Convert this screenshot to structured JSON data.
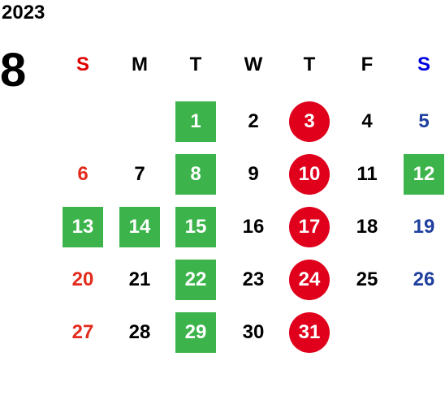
{
  "calendar": {
    "year": "2023",
    "month": "8",
    "weekdays": [
      {
        "label": "S",
        "color": "#e00000"
      },
      {
        "label": "M",
        "color": "#000000"
      },
      {
        "label": "T",
        "color": "#000000"
      },
      {
        "label": "W",
        "color": "#000000"
      },
      {
        "label": "T",
        "color": "#000000"
      },
      {
        "label": "F",
        "color": "#000000"
      },
      {
        "label": "S",
        "color": "#0000e0"
      }
    ],
    "colors": {
      "sunday_text": "#e32b1c",
      "saturday_text": "#1f3f9e",
      "weekday_text": "#000000",
      "green_highlight": "#3cb44b",
      "red_highlight": "#e0001c",
      "highlight_text": "#ffffff"
    },
    "weeks": [
      [
        null,
        null,
        {
          "day": "1",
          "mark": "square"
        },
        {
          "day": "2"
        },
        {
          "day": "3",
          "mark": "circle"
        },
        {
          "day": "4"
        },
        {
          "day": "5"
        }
      ],
      [
        {
          "day": "6"
        },
        {
          "day": "7"
        },
        {
          "day": "8",
          "mark": "square"
        },
        {
          "day": "9"
        },
        {
          "day": "10",
          "mark": "circle"
        },
        {
          "day": "11"
        },
        {
          "day": "12",
          "mark": "square"
        }
      ],
      [
        {
          "day": "13",
          "mark": "square"
        },
        {
          "day": "14",
          "mark": "square"
        },
        {
          "day": "15",
          "mark": "square"
        },
        {
          "day": "16"
        },
        {
          "day": "17",
          "mark": "circle"
        },
        {
          "day": "18"
        },
        {
          "day": "19"
        }
      ],
      [
        {
          "day": "20"
        },
        {
          "day": "21"
        },
        {
          "day": "22",
          "mark": "square"
        },
        {
          "day": "23"
        },
        {
          "day": "24",
          "mark": "circle"
        },
        {
          "day": "25"
        },
        {
          "day": "26"
        }
      ],
      [
        {
          "day": "27"
        },
        {
          "day": "28"
        },
        {
          "day": "29",
          "mark": "square"
        },
        {
          "day": "30"
        },
        {
          "day": "31",
          "mark": "circle"
        },
        null,
        null
      ]
    ]
  }
}
